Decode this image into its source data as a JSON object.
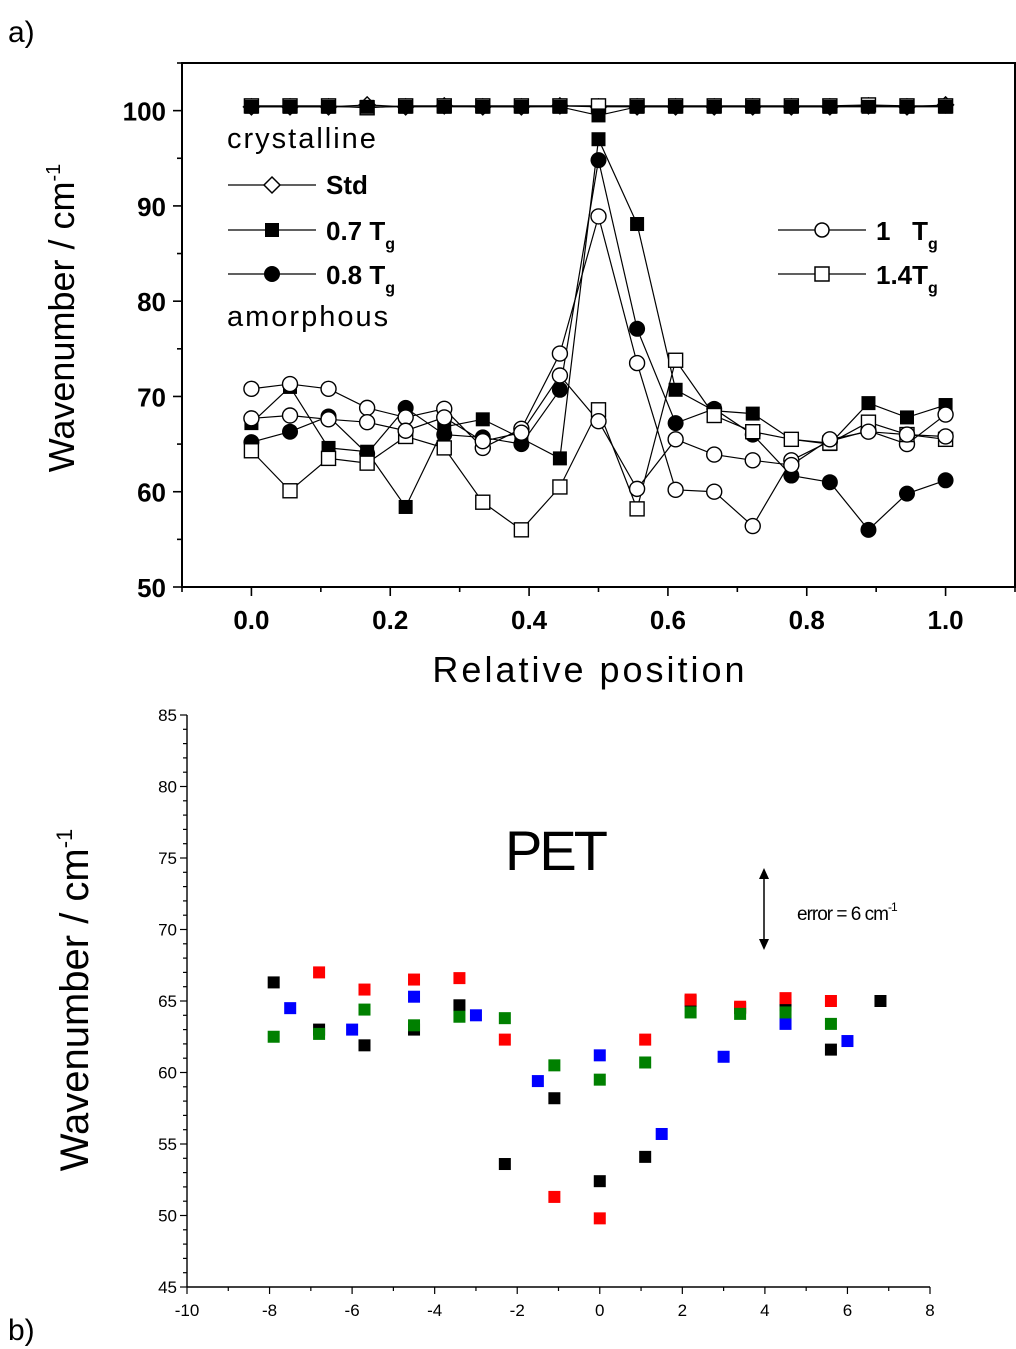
{
  "panel_labels": {
    "a": "a)",
    "b": "b)"
  },
  "chart_data": [
    {
      "type": "line",
      "xlabel": "Relative position",
      "ylabel": "Wavenumber / cm",
      "ylabel_sup": "-1",
      "xlim": [
        -0.1,
        1.1
      ],
      "ylim": [
        50,
        105
      ],
      "xticks": [
        "0.0",
        "0.2",
        "0.4",
        "0.6",
        "0.8",
        "1.0"
      ],
      "yticks": [
        "50",
        "60",
        "70",
        "80",
        "90",
        "100"
      ],
      "annotations": [
        "crystalline",
        "amorphous"
      ],
      "x": [
        0.0,
        0.0556,
        0.1111,
        0.1667,
        0.2222,
        0.2778,
        0.3333,
        0.3889,
        0.4444,
        0.5,
        0.5556,
        0.6111,
        0.6667,
        0.7222,
        0.7778,
        0.8333,
        0.8889,
        0.9444,
        1.0
      ],
      "series": [
        {
          "name": "Std",
          "name_sub": "",
          "marker": "diamond-open",
          "values": [
            100.4,
            100.4,
            100.4,
            100.6,
            100.4,
            100.5,
            100.4,
            100.4,
            100.5,
            100.4,
            100.4,
            100.4,
            100.4,
            100.4,
            100.4,
            100.4,
            100.5,
            100.4,
            100.6
          ]
        },
        {
          "name": "0.7 T",
          "name_sub": "g",
          "marker": "square-filled",
          "values": [
            67.2,
            71.0,
            64.6,
            64.2,
            58.4,
            66.8,
            67.6,
            65.6,
            63.5,
            97.0,
            88.1,
            70.7,
            68.5,
            68.2,
            65.5,
            65.0,
            69.3,
            67.8,
            69.1
          ]
        },
        {
          "name": "0.8 T",
          "name_sub": "g",
          "marker": "circle-filled",
          "values": [
            65.2,
            66.3,
            67.9,
            64.0,
            68.8,
            66.0,
            65.7,
            65.0,
            70.7,
            94.8,
            77.1,
            67.2,
            68.7,
            66.0,
            61.7,
            61.0,
            56.0,
            59.8,
            61.2
          ]
        },
        {
          "name": "1   T",
          "name_sub": "g",
          "marker": "circle-open",
          "values": [
            70.8,
            71.3,
            70.8,
            68.8,
            67.8,
            68.7,
            64.6,
            66.6,
            74.5,
            88.9,
            73.5,
            60.2,
            60.0,
            56.4,
            63.3,
            65.3,
            66.4,
            65.0,
            68.1
          ]
        },
        {
          "name": "1.4T",
          "name_sub": "g",
          "marker": "square-open",
          "values": [
            64.3,
            60.1,
            63.5,
            63.0,
            65.8,
            64.6,
            58.9,
            56.0,
            60.5,
            68.6,
            58.2,
            73.8,
            68.0,
            66.3,
            65.5,
            65.1,
            67.3,
            66.0,
            65.5
          ]
        },
        {
          "name": "",
          "marker": "circle-open",
          "values": [
            67.7,
            68.0,
            67.6,
            67.3,
            66.4,
            67.8,
            65.3,
            66.2,
            72.2,
            67.4,
            60.3,
            65.5,
            63.9,
            63.3,
            62.8,
            65.5,
            66.3,
            66.0,
            65.8
          ]
        },
        {
          "name": "",
          "marker": "square-open",
          "values": [
            100.5,
            100.5,
            100.5,
            100.3,
            100.5,
            100.5,
            100.5,
            100.5,
            100.5,
            100.5,
            100.5,
            100.5,
            100.5,
            100.5,
            100.5,
            100.5,
            100.6,
            100.5,
            100.5
          ]
        },
        {
          "name": "",
          "marker": "square-filled",
          "values": [
            100.4,
            100.4,
            100.4,
            100.4,
            100.4,
            100.4,
            100.4,
            100.4,
            100.4,
            99.5,
            100.4,
            100.4,
            100.4,
            100.4,
            100.4,
            100.4,
            100.4,
            100.4,
            100.4
          ]
        }
      ]
    },
    {
      "type": "scatter",
      "title": "PET",
      "ylabel": "Wavenumber / cm",
      "ylabel_sup": "-1",
      "xlim": [
        -10,
        8
      ],
      "ylim": [
        45,
        85
      ],
      "xticks": [
        "-10",
        "-8",
        "-6",
        "-4",
        "-2",
        "0",
        "2",
        "4",
        "6",
        "8"
      ],
      "yticks": [
        "45",
        "50",
        "55",
        "60",
        "65",
        "70",
        "75",
        "80",
        "85"
      ],
      "annotation": {
        "text": "error = 6 cm",
        "sup": "-1",
        "error_bar_cm": 6,
        "x": 4,
        "y": 70
      },
      "series": [
        {
          "name": "",
          "color": "#000000",
          "points": [
            [
              -7.9,
              66.3
            ],
            [
              -6.8,
              63.0
            ],
            [
              -5.7,
              61.9
            ],
            [
              -4.5,
              63.0
            ],
            [
              -3.4,
              64.7
            ],
            [
              -2.3,
              53.6
            ],
            [
              -1.1,
              58.2
            ],
            [
              0.0,
              52.4
            ],
            [
              1.1,
              54.1
            ],
            [
              2.2,
              65.0
            ],
            [
              3.4,
              64.5
            ],
            [
              4.5,
              64.7
            ],
            [
              5.6,
              61.6
            ],
            [
              6.8,
              65.0
            ]
          ]
        },
        {
          "name": "",
          "color": "#ff0000",
          "points": [
            [
              -6.8,
              67.0
            ],
            [
              -5.7,
              65.8
            ],
            [
              -4.5,
              66.5
            ],
            [
              -3.4,
              66.6
            ],
            [
              -2.3,
              62.3
            ],
            [
              -1.1,
              51.3
            ],
            [
              0.0,
              49.8
            ],
            [
              1.1,
              62.3
            ],
            [
              2.2,
              65.1
            ],
            [
              3.4,
              64.6
            ],
            [
              4.5,
              65.2
            ],
            [
              5.6,
              65.0
            ]
          ]
        },
        {
          "name": "",
          "color": "#0000ff",
          "points": [
            [
              -7.5,
              64.5
            ],
            [
              -6.0,
              63.0
            ],
            [
              -4.5,
              65.3
            ],
            [
              -3.0,
              64.0
            ],
            [
              -1.5,
              59.4
            ],
            [
              0.0,
              61.2
            ],
            [
              1.5,
              55.7
            ],
            [
              3.0,
              61.1
            ],
            [
              4.5,
              63.4
            ],
            [
              6.0,
              62.2
            ]
          ]
        },
        {
          "name": "",
          "color": "#008000",
          "points": [
            [
              -7.9,
              62.5
            ],
            [
              -6.8,
              62.7
            ],
            [
              -5.7,
              64.4
            ],
            [
              -4.5,
              63.3
            ],
            [
              -3.4,
              63.9
            ],
            [
              -2.3,
              63.8
            ],
            [
              -1.1,
              60.5
            ],
            [
              0.0,
              59.5
            ],
            [
              1.1,
              60.7
            ],
            [
              2.2,
              64.2
            ],
            [
              3.4,
              64.1
            ],
            [
              4.5,
              64.2
            ],
            [
              5.6,
              63.4
            ]
          ]
        }
      ]
    }
  ]
}
